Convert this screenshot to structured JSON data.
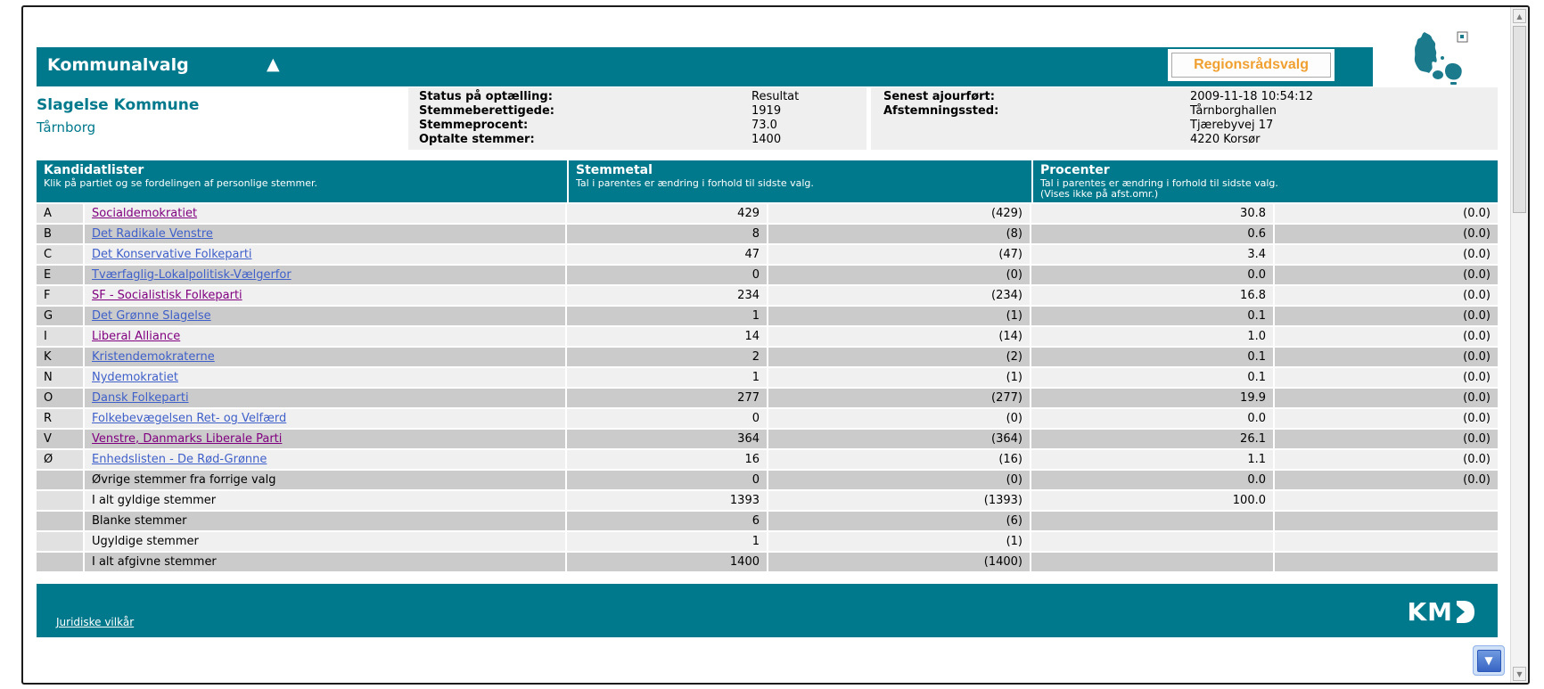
{
  "colors": {
    "teal": "#00798c",
    "orange_button_text": "#f0a030",
    "link_blue": "#3f5fc9",
    "link_visited": "#800080",
    "row_light": "#f0f0f0",
    "row_dark": "#cbcbcb",
    "panel_gray": "#efefef"
  },
  "icons": {
    "collapse_triangle": "▲",
    "scroll_up": "▲",
    "scroll_down": "▼",
    "jump_down": "▼"
  },
  "header": {
    "title": "Kommunalvalg",
    "region_button": "Regionsrådsvalg"
  },
  "location": {
    "municipality": "Slagelse Kommune",
    "district": "Tårnborg"
  },
  "status_panel": {
    "rows": [
      {
        "label": "Status på optælling:",
        "value": "Resultat"
      },
      {
        "label": "Stemmeberettigede:",
        "value": "1919"
      },
      {
        "label": "Stemmeprocent:",
        "value": "73.0"
      },
      {
        "label": "Optalte stemmer:",
        "value": "1400"
      }
    ]
  },
  "info_panel": {
    "updated_label": "Senest ajourført:",
    "updated_value": "2009-11-18 10:54:12",
    "place_label": "Afstemningssted:",
    "place_lines": [
      "Tårnborghallen",
      "Tjærebyvej 17",
      "4220 Korsør"
    ]
  },
  "table": {
    "columns": {
      "kandidatlister": {
        "title": "Kandidatlister",
        "subtitle": "Klik på partiet og se fordelingen af personlige stemmer."
      },
      "stemmetal": {
        "title": "Stemmetal",
        "subtitle": "Tal i parentes er ændring i forhold til sidste valg."
      },
      "procenter": {
        "title": "Procenter",
        "subtitle": "Tal i parentes er ændring i forhold til sidste valg.",
        "subtitle2": "(Vises ikke på afst.omr.)"
      }
    },
    "rows": [
      {
        "letter": "A",
        "party": "Socialdemokratiet",
        "link": "visited",
        "votes": "429",
        "votes_change": "(429)",
        "percent": "30.8",
        "percent_change": "(0.0)"
      },
      {
        "letter": "B",
        "party": "Det Radikale Venstre",
        "link": "link",
        "votes": "8",
        "votes_change": "(8)",
        "percent": "0.6",
        "percent_change": "(0.0)"
      },
      {
        "letter": "C",
        "party": "Det Konservative Folkeparti",
        "link": "link",
        "votes": "47",
        "votes_change": "(47)",
        "percent": "3.4",
        "percent_change": "(0.0)"
      },
      {
        "letter": "E",
        "party": "Tværfaglig-Lokalpolitisk-Vælgerfor",
        "link": "link",
        "votes": "0",
        "votes_change": "(0)",
        "percent": "0.0",
        "percent_change": "(0.0)"
      },
      {
        "letter": "F",
        "party": "SF - Socialistisk Folkeparti",
        "link": "visited",
        "votes": "234",
        "votes_change": "(234)",
        "percent": "16.8",
        "percent_change": "(0.0)"
      },
      {
        "letter": "G",
        "party": "Det Grønne Slagelse",
        "link": "link",
        "votes": "1",
        "votes_change": "(1)",
        "percent": "0.1",
        "percent_change": "(0.0)"
      },
      {
        "letter": "I",
        "party": "Liberal Alliance",
        "link": "visited",
        "votes": "14",
        "votes_change": "(14)",
        "percent": "1.0",
        "percent_change": "(0.0)"
      },
      {
        "letter": "K",
        "party": "Kristendemokraterne",
        "link": "link",
        "votes": "2",
        "votes_change": "(2)",
        "percent": "0.1",
        "percent_change": "(0.0)"
      },
      {
        "letter": "N",
        "party": "Nydemokratiet",
        "link": "link",
        "votes": "1",
        "votes_change": "(1)",
        "percent": "0.1",
        "percent_change": "(0.0)"
      },
      {
        "letter": "O",
        "party": "Dansk Folkeparti",
        "link": "link",
        "votes": "277",
        "votes_change": "(277)",
        "percent": "19.9",
        "percent_change": "(0.0)"
      },
      {
        "letter": "R",
        "party": "Folkebevægelsen Ret- og Velfærd",
        "link": "link",
        "votes": "0",
        "votes_change": "(0)",
        "percent": "0.0",
        "percent_change": "(0.0)"
      },
      {
        "letter": "V",
        "party": "Venstre, Danmarks Liberale Parti",
        "link": "visited",
        "votes": "364",
        "votes_change": "(364)",
        "percent": "26.1",
        "percent_change": "(0.0)"
      },
      {
        "letter": "Ø",
        "party": "Enhedslisten - De Rød-Grønne",
        "link": "link",
        "votes": "16",
        "votes_change": "(16)",
        "percent": "1.1",
        "percent_change": "(0.0)"
      },
      {
        "letter": "",
        "party": "Øvrige stemmer fra forrige valg",
        "link": "none",
        "votes": "0",
        "votes_change": "(0)",
        "percent": "0.0",
        "percent_change": "(0.0)"
      },
      {
        "letter": "",
        "party": "I alt gyldige stemmer",
        "link": "none",
        "votes": "1393",
        "votes_change": "(1393)",
        "percent": "100.0",
        "percent_change": ""
      },
      {
        "letter": "",
        "party": "Blanke stemmer",
        "link": "none",
        "votes": "6",
        "votes_change": "(6)",
        "percent": "",
        "percent_change": ""
      },
      {
        "letter": "",
        "party": "Ugyldige stemmer",
        "link": "none",
        "votes": "1",
        "votes_change": "(1)",
        "percent": "",
        "percent_change": ""
      },
      {
        "letter": "",
        "party": "I alt afgivne stemmer",
        "link": "none",
        "votes": "1400",
        "votes_change": "(1400)",
        "percent": "",
        "percent_change": ""
      }
    ]
  },
  "footer": {
    "legal_link": "Juridiske vilkår",
    "logo": "KMD"
  }
}
